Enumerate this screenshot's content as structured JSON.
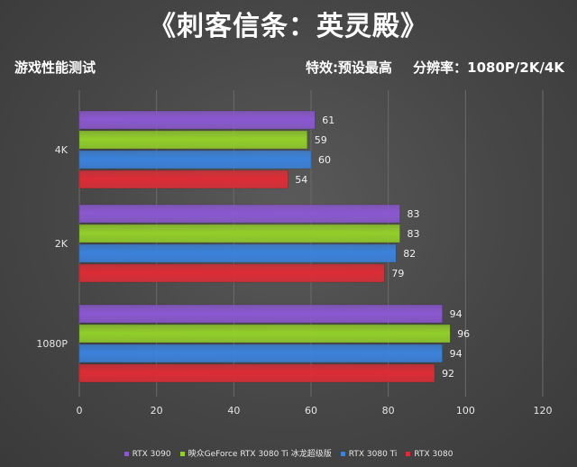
{
  "header": {
    "title": "《刺客信条：英灵殿》",
    "subtitle_left": "游戏性能测试",
    "settings": "特效:预设最高",
    "resolution": "分辨率：1080P/2K/4K"
  },
  "colors": {
    "RTX 3090": "#8b58d0",
    "映众GeForce RTX 3080 Ti 冰龙超级版": "#92cf2a",
    "RTX 3080 Ti": "#3b82dc",
    "RTX 3080": "#dd2c35"
  },
  "chart_data": {
    "type": "bar",
    "orientation": "horizontal",
    "categories": [
      "4K",
      "2K",
      "1080P"
    ],
    "series": [
      {
        "name": "RTX 3090",
        "values": [
          61,
          83,
          94
        ]
      },
      {
        "name": "映众GeForce RTX 3080 Ti 冰龙超级版",
        "values": [
          59,
          83,
          96
        ]
      },
      {
        "name": "RTX 3080 Ti",
        "values": [
          60,
          82,
          94
        ]
      },
      {
        "name": "RTX 3080",
        "values": [
          54,
          79,
          92
        ]
      }
    ],
    "xlim": [
      0,
      120
    ],
    "xticks": [
      0,
      20,
      40,
      60,
      80,
      100,
      120
    ],
    "grid": true,
    "legend_position": "bottom"
  }
}
